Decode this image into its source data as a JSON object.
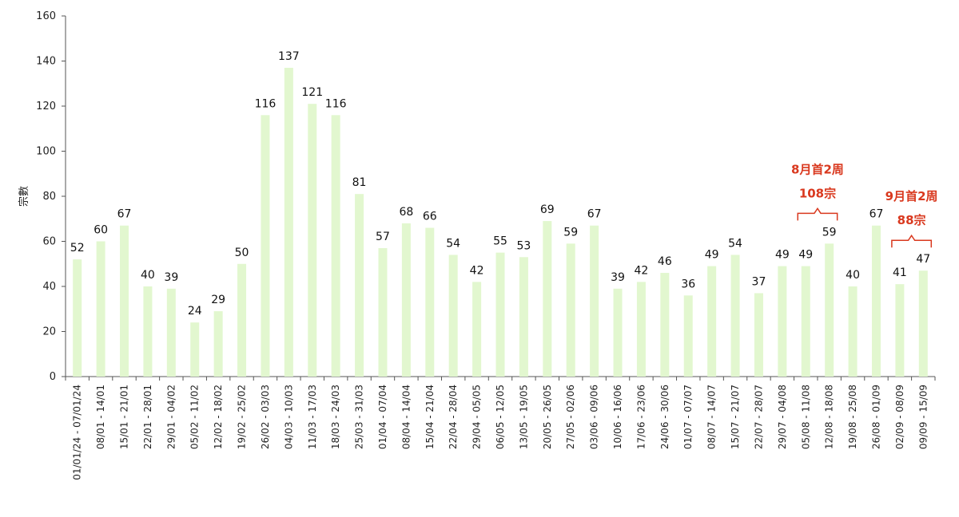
{
  "chart_data": {
    "type": "bar",
    "ylabel": "宗數",
    "ylim": [
      0,
      160
    ],
    "yticks": [
      0,
      20,
      40,
      60,
      80,
      100,
      120,
      140,
      160
    ],
    "grid": false,
    "legend": "none",
    "bar_color": "#e2f7cf",
    "categories": [
      "01/01/24 - 07/01/24",
      "08/01 - 14/01",
      "15/01 - 21/01",
      "22/01 - 28/01",
      "29/01 - 04/02",
      "05/02 - 11/02",
      "12/02 - 18/02",
      "19/02 - 25/02",
      "26/02 - 03/03",
      "04/03 - 10/03",
      "11/03 - 17/03",
      "18/03 - 24/03",
      "25/03 - 31/03",
      "01/04 - 07/04",
      "08/04 - 14/04",
      "15/04 - 21/04",
      "22/04 - 28/04",
      "29/04 - 05/05",
      "06/05 - 12/05",
      "13/05 - 19/05",
      "20/05 - 26/05",
      "27/05 - 02/06",
      "03/06 - 09/06",
      "10/06 - 16/06",
      "17/06 - 23/06",
      "24/06 - 30/06",
      "01/07 - 07/07",
      "08/07 - 14/07",
      "15/07 - 21/07",
      "22/07 - 28/07",
      "29/07 - 04/08",
      "05/08 - 11/08",
      "12/08 - 18/08",
      "19/08 - 25/08",
      "26/08 - 01/09",
      "02/09 - 08/09",
      "09/09 - 15/09"
    ],
    "values": [
      52,
      60,
      67,
      40,
      39,
      24,
      29,
      50,
      116,
      137,
      121,
      116,
      81,
      57,
      68,
      66,
      54,
      42,
      55,
      53,
      69,
      59,
      67,
      39,
      42,
      46,
      36,
      49,
      54,
      37,
      49,
      49,
      59,
      40,
      67,
      41,
      47
    ],
    "annotations": [
      {
        "lines": [
          "8月首2周",
          "108宗"
        ],
        "from_index": 31,
        "to_index": 32,
        "color": "#d9381e"
      },
      {
        "lines": [
          "9月首2周",
          "88宗"
        ],
        "from_index": 35,
        "to_index": 36,
        "color": "#d9381e"
      }
    ]
  }
}
